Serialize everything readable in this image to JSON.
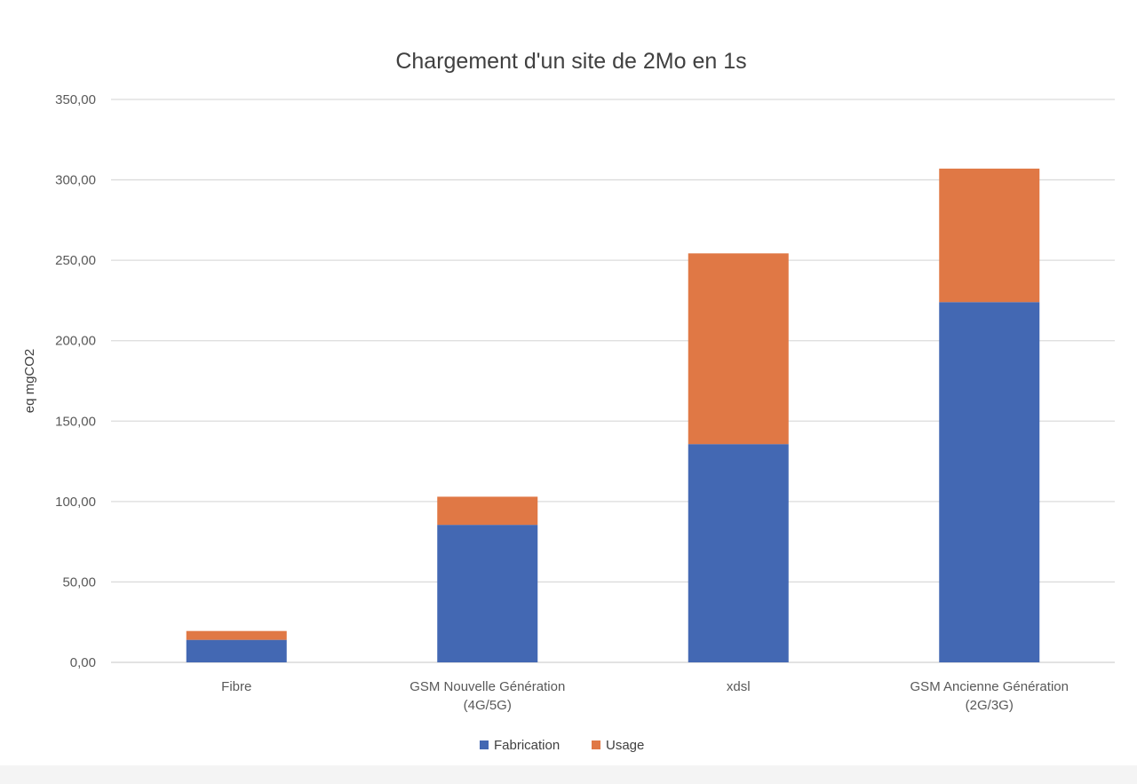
{
  "chart_data": {
    "type": "bar",
    "stacked": true,
    "title": "Chargement d'un site de 2Mo en 1s",
    "xlabel": "",
    "ylabel": "eq mgCO2",
    "ylim": [
      0,
      350
    ],
    "yticks": [
      "0,00",
      "50,00",
      "100,00",
      "150,00",
      "200,00",
      "250,00",
      "300,00",
      "350,00"
    ],
    "grid": true,
    "legend": "bottom",
    "categories": [
      [
        "Fibre"
      ],
      [
        "GSM Nouvelle Génération",
        "(4G/5G)"
      ],
      [
        "xdsl"
      ],
      [
        "GSM Ancienne Génération",
        "(2G/3G)"
      ]
    ],
    "series": [
      {
        "name": "Fabrication",
        "color": "#4368B3",
        "values": [
          14.0,
          85.5,
          135.7,
          224.0
        ]
      },
      {
        "name": "Usage",
        "color": "#E07845",
        "values": [
          5.5,
          17.5,
          118.6,
          83.0
        ]
      }
    ]
  }
}
